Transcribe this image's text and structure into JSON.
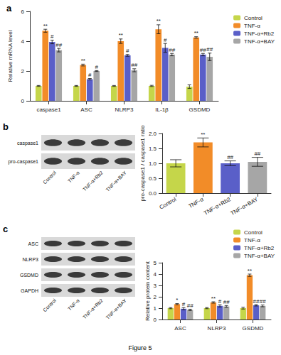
{
  "figure_label": "Figure 5",
  "blots": [
    {
      "label": "b",
      "rows": [
        "caspase1",
        "pro-caspase1"
      ],
      "lanes": [
        "Control",
        "TNF-α",
        "TNF-α+Rb2",
        "TNF-α+BAY"
      ]
    },
    {
      "label": "c",
      "rows": [
        "ASC",
        "NLRP3",
        "GSDMD",
        "GAPDH"
      ],
      "lanes": [
        "Control",
        "TNF-α",
        "TNF-α+Rb2",
        "TNF-α+BAY"
      ]
    }
  ],
  "chart_data": [
    {
      "type": "bar",
      "title": "a",
      "y_label": "Relative mRNA level",
      "categories": [
        "caspase1",
        "ASC",
        "NLRP3",
        "IL-1β",
        "GSDMD"
      ],
      "series": [
        {
          "name": "Control",
          "color": "#c5d64a",
          "values": [
            1,
            1,
            1,
            1,
            0.95
          ],
          "errors": [
            0.03,
            0.03,
            0.03,
            0.04,
            0.12
          ],
          "annotations": [
            null,
            null,
            null,
            null,
            null
          ]
        },
        {
          "name": "TNF-α",
          "color": "#f28c28",
          "values": [
            4.7,
            2.4,
            4.0,
            4.8,
            4.25
          ],
          "errors": [
            0.1,
            0.06,
            0.15,
            0.3,
            0.05
          ],
          "annotations": [
            "**",
            "**",
            "**",
            "**",
            "**"
          ]
        },
        {
          "name": "TNF-α+Rb2",
          "color": "#5a5fc8",
          "values": [
            3.95,
            1.45,
            3.05,
            3.55,
            3.1
          ],
          "errors": [
            0.12,
            0.05,
            0.06,
            0.3,
            0.08
          ],
          "annotations": [
            "#",
            "#",
            "#",
            "#",
            "##"
          ]
        },
        {
          "name": "TNF-α+BAY",
          "color": "#a6a6a6",
          "values": [
            3.4,
            2.0,
            2.05,
            3.1,
            2.95
          ],
          "errors": [
            0.12,
            0.03,
            0.1,
            0.08,
            0.25
          ],
          "annotations": [
            "##",
            "#",
            "##",
            "##",
            "##"
          ]
        }
      ],
      "ylim": [
        0,
        6
      ],
      "yticks": [
        0,
        2,
        4,
        6
      ],
      "grid": false,
      "legend": "upper right"
    },
    {
      "type": "bar",
      "y_label": "pro-caspase1 / caspase1 ratio",
      "categories": [
        "Control",
        "TNF-α",
        "TNF-α+Rb2",
        "TNF-α+BAY"
      ],
      "values": [
        1.0,
        1.7,
        1.0,
        1.05
      ],
      "errors": [
        0.12,
        0.15,
        0.08,
        0.15
      ],
      "annotations": [
        null,
        "**",
        "##",
        "##"
      ],
      "colors": [
        "#c5d64a",
        "#f28c28",
        "#5a5fc8",
        "#a6a6a6"
      ],
      "ylim": [
        0,
        2
      ],
      "yticks": [
        {
          "value": 0,
          "label": "0.0"
        },
        {
          "value": 0.5,
          "label": "0.5"
        },
        {
          "value": 1,
          "label": "1.0"
        },
        {
          "value": 1.5,
          "label": "1.5"
        },
        {
          "value": 2,
          "label": "2.0"
        }
      ],
      "grid": false
    },
    {
      "type": "bar",
      "y_label": "Relative protein content",
      "categories": [
        "ASC",
        "NLRP3",
        "GSDMD"
      ],
      "series": [
        {
          "name": "Control",
          "color": "#c5d64a",
          "values": [
            1,
            1,
            1
          ],
          "errors": [
            0.05,
            0.05,
            0.08
          ],
          "annotations": [
            null,
            null,
            null
          ]
        },
        {
          "name": "TNF-α",
          "color": "#f28c28",
          "values": [
            1.35,
            1.5,
            3.9
          ],
          "errors": [
            0.05,
            0.06,
            0.1
          ],
          "annotations": [
            "*",
            "**",
            "**"
          ]
        },
        {
          "name": "TNF-α+Rb2",
          "color": "#5a5fc8",
          "values": [
            0.95,
            1.2,
            1.25
          ],
          "errors": [
            0.1,
            0.1,
            0.06
          ],
          "annotations": [
            "#",
            "#",
            "##"
          ]
        },
        {
          "name": "TNF-α+BAY",
          "color": "#a6a6a6",
          "values": [
            0.85,
            1.15,
            1.2
          ],
          "errors": [
            0.06,
            0.08,
            0.08
          ],
          "annotations": [
            "##",
            "##",
            "##"
          ]
        }
      ],
      "ylim": [
        0,
        5
      ],
      "yticks": [
        0,
        1,
        2,
        3,
        4,
        5
      ],
      "grid": false,
      "legend": "upper right"
    }
  ]
}
